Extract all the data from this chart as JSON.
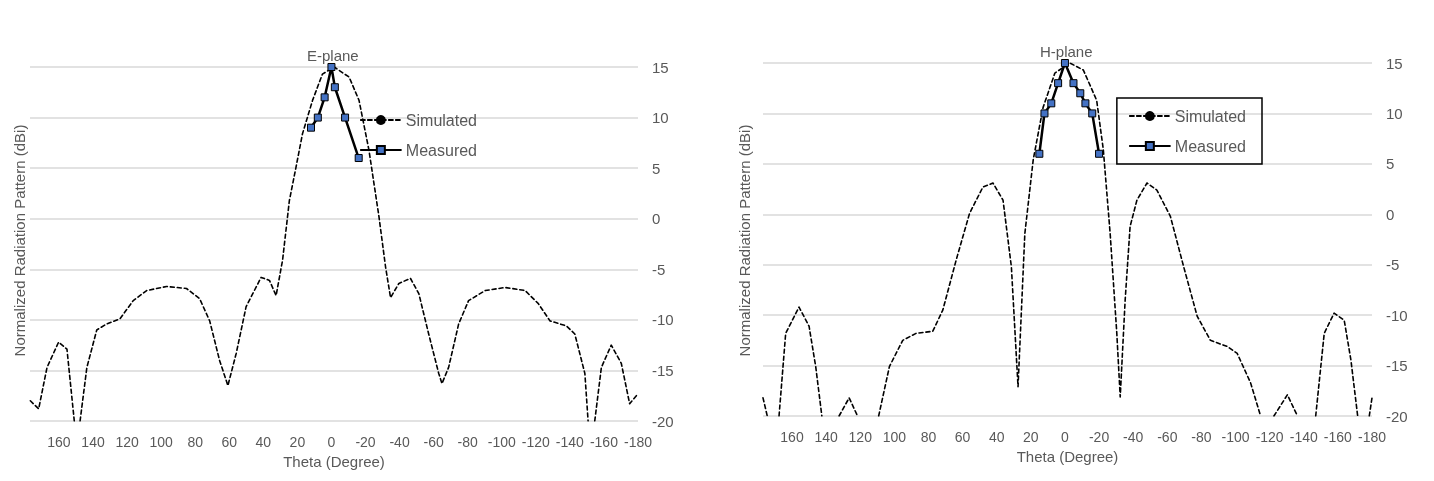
{
  "chart_data": [
    {
      "type": "line",
      "title": "E-plane",
      "xlabel": "Theta (Degree)",
      "ylabel": "Normalized Radiation Pattern (dBi)",
      "xlim": [
        177,
        -180
      ],
      "xticks": [
        160,
        140,
        120,
        100,
        80,
        60,
        40,
        20,
        0,
        -20,
        -40,
        -60,
        -80,
        -100,
        -120,
        -140,
        -160,
        -180
      ],
      "ylim": [
        -20,
        15
      ],
      "yticks": [
        -20,
        -15,
        -10,
        -5,
        0,
        5,
        10,
        15
      ],
      "grid": "y",
      "legend": "top right",
      "series": [
        {
          "name": "Simulated",
          "color": "#000000",
          "line_style": "dashed",
          "marker": "none",
          "x": [
            176.8,
            171.9,
            167,
            160.2,
            155.3,
            151,
            149.5,
            147.6,
            143.6,
            137.8,
            131.9,
            124.2,
            116.4,
            108.5,
            96.8,
            85.1,
            77.4,
            71.5,
            65.7,
            60.8,
            55.9,
            50.1,
            41.3,
            36.4,
            32.5,
            28.7,
            24.7,
            20.8,
            17,
            11.1,
            5.3,
            -1.6,
            -10.4,
            -16.2,
            -22,
            -27.9,
            -31.8,
            -34.7,
            -39.6,
            -46.4,
            -51.3,
            -57.1,
            -63,
            -64.9,
            -68.8,
            -74.7,
            -80.5,
            -90.3,
            -102,
            -113.7,
            -121.5,
            -128.3,
            -138,
            -142.9,
            -148.8,
            -150.7,
            -152.5,
            -154.6,
            -158.5,
            -164.3,
            -170.2,
            -175.1,
            -180
          ],
          "values": [
            -18,
            -18.8,
            -14.7,
            -12.2,
            -12.9,
            -20,
            null,
            -20,
            -14.7,
            -11,
            -10.4,
            -9.9,
            -8.1,
            -7.1,
            -6.7,
            -6.9,
            -7.9,
            -10.1,
            -14,
            -16.5,
            -13.3,
            -8.7,
            -5.8,
            -6.1,
            -7.6,
            -4.1,
            1.8,
            5.1,
            8.4,
            11.7,
            14.3,
            15,
            14,
            11.7,
            6.8,
            0.2,
            -4.8,
            -7.8,
            -6.4,
            -5.9,
            -7.4,
            -11.4,
            -15.3,
            -16.3,
            -14.7,
            -10.4,
            -8.1,
            -7.1,
            -6.8,
            -7.1,
            -8.4,
            -10.1,
            -10.6,
            -11.4,
            -15.3,
            -20,
            null,
            -20,
            -14.7,
            -12.5,
            -14.3,
            -18.3,
            -17.3
          ]
        },
        {
          "name": "Measured",
          "color": "#4472c4",
          "line_style": "solid",
          "marker": "square",
          "x": [
            12,
            8,
            4,
            0,
            -2,
            -8,
            -16
          ],
          "values": [
            9,
            10,
            12,
            15,
            13,
            10,
            6
          ]
        }
      ]
    },
    {
      "type": "line",
      "title": "H-plane",
      "xlabel": "Theta (Degree)",
      "ylabel": "Normalized Radiation Pattern (dBi)",
      "xlim": [
        177,
        -180
      ],
      "xticks": [
        160,
        140,
        120,
        100,
        80,
        60,
        40,
        20,
        0,
        -20,
        -40,
        -60,
        -80,
        -100,
        -120,
        -140,
        -160,
        -180
      ],
      "ylim": [
        -20,
        15
      ],
      "yticks": [
        -20,
        -15,
        -10,
        -5,
        0,
        5,
        10,
        15
      ],
      "grid": "y",
      "legend": "top right",
      "series": [
        {
          "name": "Simulated",
          "color": "#000000",
          "line_style": "dashed",
          "marker": "none",
          "x": [
            177,
            174.5,
            171,
            167.6,
            163.7,
            155.9,
            150,
            146.1,
            142.5,
            137,
            132.4,
            126.5,
            121.6,
            115,
            109.2,
            102.9,
            95.1,
            87.2,
            77.5,
            71.6,
            63.7,
            55.9,
            48.1,
            42.2,
            36.3,
            31.4,
            27.5,
            23.5,
            18.6,
            12.8,
            5.9,
            -2.9,
            -10.8,
            -18.6,
            -22.5,
            -26.5,
            -30.4,
            -32.4,
            -35.3,
            -38.2,
            -42.2,
            -48.1,
            -53.9,
            -61.8,
            -69.6,
            -77.5,
            -85.3,
            -95.1,
            -101,
            -108.8,
            -114.7,
            -118,
            -122.5,
            -130.4,
            -136.3,
            -142,
            -147,
            -152,
            -157.8,
            -163.7,
            -167.6,
            -171.6,
            -175,
            -178.4,
            -180
          ],
          "values": [
            -18.2,
            -20,
            null,
            -20,
            -11.8,
            -9.2,
            -11.1,
            -15.1,
            -20,
            null,
            -20,
            -18.2,
            -20,
            null,
            -20,
            -15.1,
            -12.5,
            -11.8,
            -11.6,
            -9.5,
            -4.5,
            0.1,
            2.7,
            3.1,
            1.4,
            -5.2,
            -17.1,
            -1.9,
            5.4,
            10.6,
            14,
            15,
            14.3,
            11.3,
            6.4,
            -1.9,
            -11.8,
            -18.1,
            -8.5,
            -1.2,
            1.4,
            3.1,
            2.4,
            -0.2,
            -5.2,
            -10.1,
            -12.5,
            -13.1,
            -13.8,
            -16.7,
            -20,
            null,
            -20,
            -17.9,
            -20,
            null,
            -20,
            -11.8,
            -9.8,
            -10.5,
            -14.4,
            -20,
            null,
            -20,
            -18.2
          ]
        },
        {
          "name": "Measured",
          "color": "#4472c4",
          "line_style": "solid",
          "marker": "square",
          "x": [
            15,
            12,
            8,
            4,
            0,
            -5,
            -9,
            -12,
            -16,
            -20
          ],
          "values": [
            6,
            10,
            11,
            13,
            15,
            13,
            12,
            11,
            10,
            6
          ]
        }
      ]
    }
  ]
}
